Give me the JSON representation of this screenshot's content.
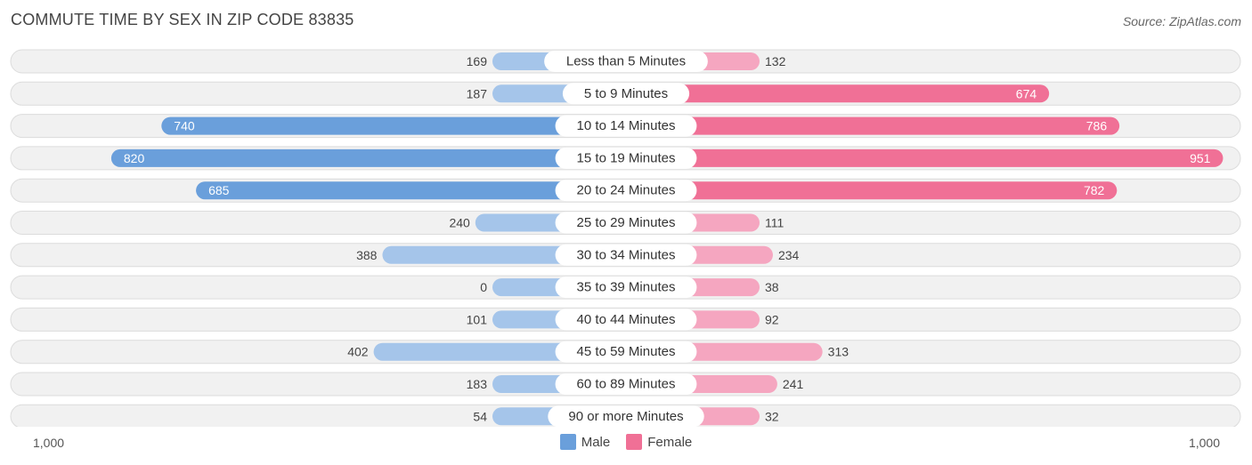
{
  "title": "COMMUTE TIME BY SEX IN ZIP CODE 83835",
  "source": "Source: ZipAtlas.com",
  "axis": {
    "left_label": "1,000",
    "right_label": "1,000"
  },
  "legend": {
    "male": "Male",
    "female": "Female"
  },
  "colors": {
    "male_strong": "#6a9fdb",
    "male_light": "#a5c5ea",
    "female_strong": "#f07096",
    "female_light": "#f5a6c0",
    "row_bg": "#f1f1f1",
    "row_border": "#dcdcdc"
  },
  "chart_data": {
    "type": "bar",
    "orientation": "diverging-horizontal",
    "title": "COMMUTE TIME BY SEX IN ZIP CODE 83835",
    "categories": [
      "Less than 5 Minutes",
      "5 to 9 Minutes",
      "10 to 14 Minutes",
      "15 to 19 Minutes",
      "20 to 24 Minutes",
      "25 to 29 Minutes",
      "30 to 34 Minutes",
      "35 to 39 Minutes",
      "40 to 44 Minutes",
      "45 to 59 Minutes",
      "60 to 89 Minutes",
      "90 or more Minutes"
    ],
    "series": [
      {
        "name": "Male",
        "values": [
          169,
          187,
          740,
          820,
          685,
          240,
          388,
          0,
          101,
          402,
          183,
          54
        ]
      },
      {
        "name": "Female",
        "values": [
          132,
          674,
          786,
          951,
          782,
          111,
          234,
          38,
          92,
          313,
          241,
          32
        ]
      }
    ],
    "xlim": [
      -1000,
      1000
    ],
    "legend_position": "bottom-center"
  }
}
